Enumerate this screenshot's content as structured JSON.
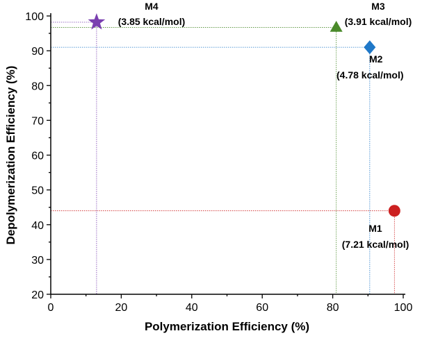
{
  "chart_data": {
    "type": "scatter",
    "xlabel": "Polymerization Efficiency (%)",
    "ylabel": "Depolymerization Efficiency (%)",
    "xlim": [
      0,
      100
    ],
    "ylim": [
      20,
      100
    ],
    "x_ticks": [
      "0",
      "20",
      "40",
      "60",
      "80",
      "100"
    ],
    "y_ticks": [
      "20",
      "30",
      "40",
      "50",
      "60",
      "70",
      "80",
      "90",
      "100"
    ],
    "grid": false,
    "points": [
      {
        "name": "M1",
        "energy": "(7.21 kcal/mol)",
        "x": 97.5,
        "y": 44,
        "marker": "circle",
        "color": "#cc2020"
      },
      {
        "name": "M2",
        "energy": "(4.78 kcal/mol)",
        "x": 90.5,
        "y": 91,
        "marker": "diamond",
        "color": "#1f78c8"
      },
      {
        "name": "M3",
        "energy": "(3.91 kcal/mol)",
        "x": 81,
        "y": 96.7,
        "marker": "triangle",
        "color": "#4a8a2a"
      },
      {
        "name": "M4",
        "energy": "(3.85 kcal/mol)",
        "x": 13,
        "y": 98.2,
        "marker": "star",
        "color": "#7a3fb0"
      }
    ]
  }
}
